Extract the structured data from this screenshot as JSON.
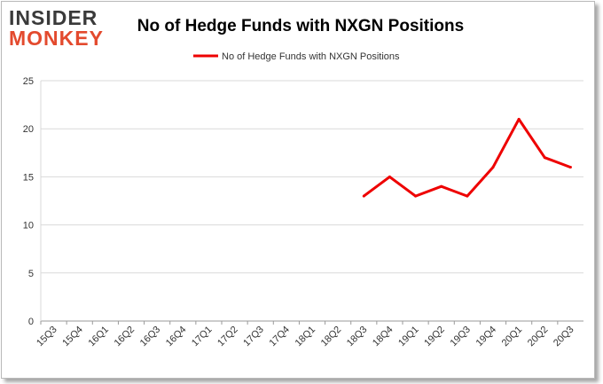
{
  "logo": {
    "line1": "INSIDER",
    "line2": "MONKEY"
  },
  "chart_data": {
    "type": "line",
    "title": "No of Hedge Funds with NXGN Positions",
    "legend": "top-center",
    "grid": true,
    "ylim": [
      0,
      25
    ],
    "yticks": [
      0,
      5,
      10,
      15,
      20,
      25
    ],
    "categories": [
      "15Q3",
      "15Q4",
      "16Q1",
      "16Q2",
      "16Q3",
      "16Q4",
      "17Q1",
      "17Q2",
      "17Q3",
      "17Q4",
      "18Q1",
      "18Q2",
      "18Q3",
      "18Q4",
      "19Q1",
      "19Q2",
      "19Q3",
      "19Q4",
      "20Q1",
      "20Q2",
      "20Q3"
    ],
    "series": [
      {
        "name": "No of Hedge Funds with NXGN Positions",
        "color": "#ee0000",
        "values": [
          null,
          null,
          null,
          null,
          null,
          null,
          null,
          null,
          null,
          null,
          null,
          null,
          13,
          15,
          13,
          14,
          13,
          16,
          21,
          17,
          16
        ]
      }
    ]
  }
}
